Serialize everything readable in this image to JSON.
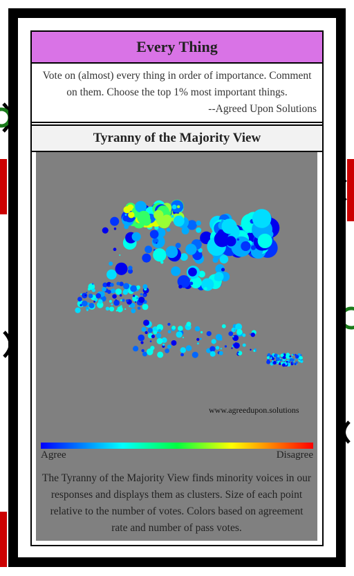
{
  "header": {
    "title": "Every Thing"
  },
  "intro": {
    "text": "Vote on (almost) every thing in order of importance. Comment on them. Choose the top 1% most important things.",
    "attribution": "--Agreed Upon Solutions"
  },
  "view": {
    "title": "Tyranny of the Majority View",
    "watermark": "www.agreedupon.solutions",
    "scale": {
      "low": "Agree",
      "high": "Disagree"
    },
    "description": "The Tyranny of the Majority View finds minority voices in our responses and displays them as clusters. Size of each point relative to the number of votes. Colors based on agreement rate and number of pass votes."
  }
}
